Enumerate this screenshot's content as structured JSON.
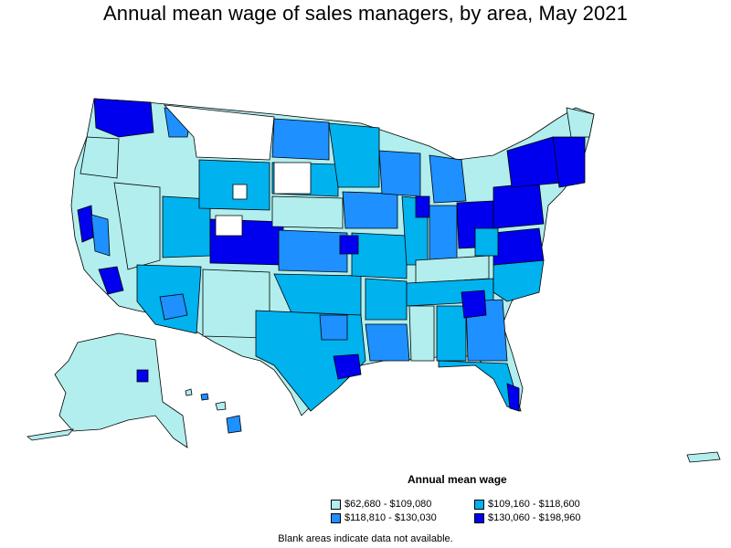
{
  "title": "Annual mean wage of sales managers, by area, May 2021",
  "legend": {
    "title": "Annual mean wage",
    "items": [
      {
        "label": "$62,680 - $109,080",
        "color": "#b2eeee"
      },
      {
        "label": "$109,160 - $118,600",
        "color": "#00b2ee"
      },
      {
        "label": "$118,810 - $130,030",
        "color": "#1e90ff"
      },
      {
        "label": "$130,060 - $198,960",
        "color": "#0000ee"
      }
    ]
  },
  "footnote": "Blank areas indicate data not available.",
  "colors": {
    "level1": "#b2eeee",
    "level2": "#00b2ee",
    "level3": "#1e90ff",
    "level4": "#0000ee",
    "no_data": "#ffffff",
    "border": "#000000"
  }
}
